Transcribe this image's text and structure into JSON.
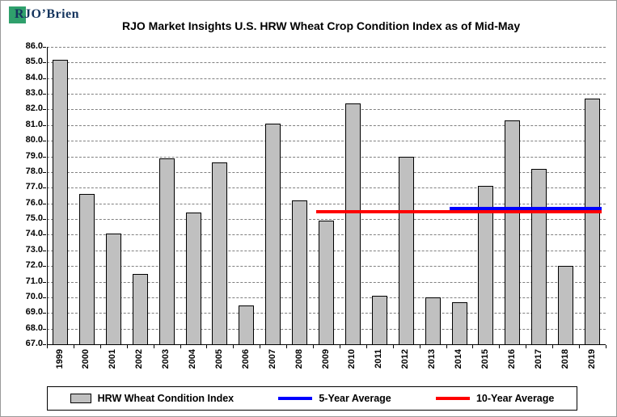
{
  "logo": {
    "name": "RJO’Brien",
    "square_color": "#2FA06C"
  },
  "chart_data": {
    "type": "bar",
    "title": "RJO Market Insights U.S. HRW Wheat Crop Condition Index as of Mid-May",
    "categories": [
      "1999",
      "2000",
      "2001",
      "2002",
      "2003",
      "2004",
      "2005",
      "2006",
      "2007",
      "2008",
      "2009",
      "2010",
      "2011",
      "2012",
      "2013",
      "2014",
      "2015",
      "2016",
      "2017",
      "2018",
      "2019"
    ],
    "series": [
      {
        "name": "HRW Wheat Condition Index",
        "type": "bar",
        "color": "#C0C0C0",
        "values": [
          85.2,
          76.6,
          74.1,
          71.5,
          78.9,
          75.4,
          78.6,
          69.5,
          81.1,
          76.2,
          74.9,
          82.4,
          70.1,
          79.0,
          70.0,
          69.7,
          77.1,
          81.3,
          78.2,
          72.0,
          82.7
        ]
      },
      {
        "name": "5-Year Average",
        "type": "line",
        "color": "#0000FF",
        "value": 75.66,
        "span": [
          "2014",
          "2019"
        ]
      },
      {
        "name": "10-Year Average",
        "type": "line",
        "color": "#FF0000",
        "value": 75.47,
        "span": [
          "2009",
          "2019"
        ]
      }
    ],
    "ylim": [
      67.0,
      86.0
    ],
    "ytick_step": 1.0,
    "grid": "horizontal-dashed",
    "legend_position": "bottom"
  }
}
